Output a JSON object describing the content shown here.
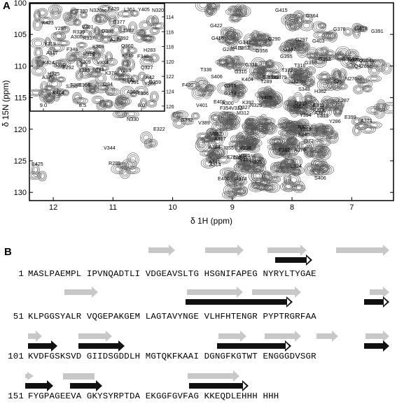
{
  "panelA": {
    "label": "A",
    "ylabel": "δ 15N (ppm)",
    "xlabel": "δ 1H (ppm)",
    "xticks": [
      "12",
      "11",
      "10",
      "9",
      "8",
      "7"
    ],
    "yticks": [
      "100",
      "105",
      "110",
      "115",
      "120",
      "125",
      "130"
    ],
    "inset_xticks": [
      "9.0",
      "8.5",
      "8.0"
    ],
    "inset_yticks": [
      "114",
      "116",
      "118",
      "120",
      "122",
      "124",
      "126"
    ],
    "peak_labels": [
      "G415",
      "G364",
      "G376",
      "G418",
      "G391",
      "G422",
      "G290",
      "G297",
      "G416",
      "G347",
      "S352",
      "V419",
      "G282",
      "G356",
      "G387",
      "G403",
      "G395",
      "G398",
      "G338",
      "G353",
      "G304sc",
      "N375sc",
      "Q304sc",
      "Q426sc",
      "N276sc",
      "T336",
      "S406",
      "G310",
      "T372",
      "T316",
      "G315",
      "S298",
      "N320sc",
      "T289",
      "K404",
      "S350",
      "T380",
      "G379",
      "F420",
      "S348",
      "H362",
      "G374",
      "A300",
      "K392",
      "Y405",
      "E400",
      "L287",
      "F354",
      "Q327",
      "N325",
      "D359",
      "E311",
      "V401",
      "M312",
      "S357",
      "F279",
      "A397",
      "Y394",
      "G332",
      "V389",
      "V323",
      "L313",
      "Y286",
      "E399",
      "A371",
      "N330",
      "E322",
      "R332",
      "Y319",
      "V882",
      "F346",
      "A317",
      "I372",
      "I355",
      "A384",
      "V338",
      "F382",
      "A370",
      "H325",
      "D384",
      "E281",
      "V381sc",
      "Y407",
      "V344",
      "R285",
      "A341",
      "A314",
      "E425",
      "L324",
      "S406",
      "E400",
      "G374",
      "K423",
      "Y299",
      "V401",
      "R339",
      "A300",
      "Y319",
      "A317",
      "F346",
      "K424",
      "A370",
      "H325",
      "T288",
      "K404",
      "S350",
      "T380",
      "N320sc",
      "F420",
      "L361",
      "Y405",
      "N320",
      "G377",
      "T382",
      "K392",
      "D388",
      "R337",
      "K369",
      "V318",
      "K309",
      "S390",
      "E292",
      "V334",
      "F393",
      "K378",
      "Y289",
      "K349",
      "F340",
      "Q360",
      "T385",
      "I284",
      "E366",
      "A291",
      "H283",
      "Q327",
      "A42",
      "R332",
      "V351",
      "Y286",
      "D359",
      "A308",
      "T306"
    ]
  },
  "panelB": {
    "label": "B",
    "rows": [
      {
        "num": "1",
        "blocks": [
          "MASLPAEMPL",
          "IPVNQADTLI",
          "VDGEAVSLTG",
          "HSGNIFAPEG",
          "NYRYLTYGAE"
        ]
      },
      {
        "num": "51",
        "blocks": [
          "KLPGGSYALR",
          "VQGEPAKGEM",
          "LAGTAVYNGE",
          "VLHFHTENGR",
          "PYPTRGRFAA"
        ]
      },
      {
        "num": "101",
        "blocks": [
          "KVDFGSKSVD",
          "GIIDSGDDLH",
          "MGTQKFKAAI",
          "DGNGFKGTWT",
          "ENGGGDVSGR"
        ]
      },
      {
        "num": "151",
        "blocks": [
          "FYGPAGEEVA",
          "GKYSYRPTDA",
          "EKGGFGVFAG",
          "KKEQDLEHHH",
          "HHH"
        ]
      }
    ]
  },
  "colors": {
    "strand_gray": "#c8c8c8",
    "strand_black": "#111111",
    "contour": "#555555"
  }
}
